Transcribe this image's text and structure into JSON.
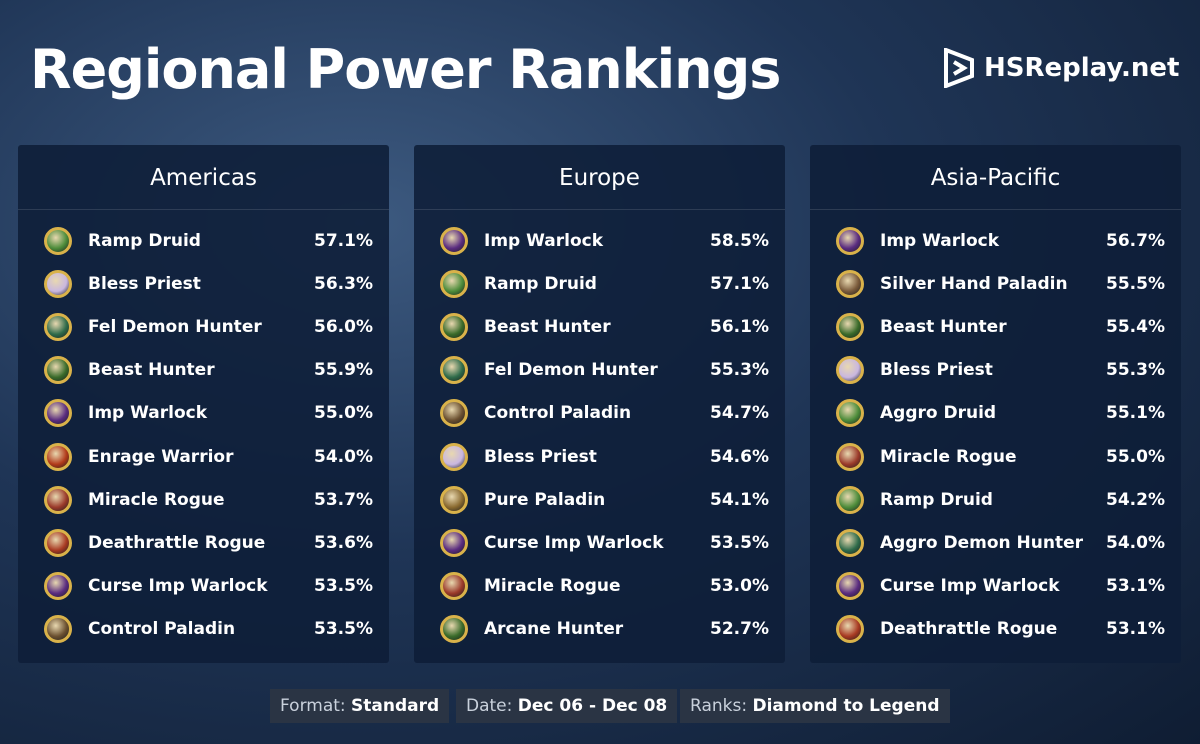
{
  "header": {
    "title": "Regional Power Rankings",
    "logo": "HSReplay.net"
  },
  "panels": [
    {
      "region": "Americas",
      "rows": [
        [
          "Ramp Druid",
          "57.1%"
        ],
        [
          "Bless Priest",
          "56.3%"
        ],
        [
          "Fel Demon Hunter",
          "56.0%"
        ],
        [
          "Beast Hunter",
          "55.9%"
        ],
        [
          "Imp Warlock",
          "55.0%"
        ],
        [
          "Enrage Warrior",
          "54.0%"
        ],
        [
          "Miracle Rogue",
          "53.7%"
        ],
        [
          "Deathrattle Rogue",
          "53.6%"
        ],
        [
          "Curse Imp Warlock",
          "53.5%"
        ],
        [
          "Control Paladin",
          "53.5%"
        ]
      ]
    },
    {
      "region": "Europe",
      "rows": [
        [
          "Imp Warlock",
          "58.5%"
        ],
        [
          "Ramp Druid",
          "57.1%"
        ],
        [
          "Beast Hunter",
          "56.1%"
        ],
        [
          "Fel Demon Hunter",
          "55.3%"
        ],
        [
          "Control Paladin",
          "54.7%"
        ],
        [
          "Bless Priest",
          "54.6%"
        ],
        [
          "Pure Paladin",
          "54.1%"
        ],
        [
          "Curse Imp Warlock",
          "53.5%"
        ],
        [
          "Miracle Rogue",
          "53.0%"
        ],
        [
          "Arcane Hunter",
          "52.7%"
        ]
      ]
    },
    {
      "region": "Asia-Pacific",
      "rows": [
        [
          "Imp Warlock",
          "56.7%"
        ],
        [
          "Silver Hand Paladin",
          "55.5%"
        ],
        [
          "Beast Hunter",
          "55.4%"
        ],
        [
          "Bless Priest",
          "55.3%"
        ],
        [
          "Aggro Druid",
          "55.1%"
        ],
        [
          "Miracle Rogue",
          "55.0%"
        ],
        [
          "Ramp Druid",
          "54.2%"
        ],
        [
          "Aggro Demon Hunter",
          "54.0%"
        ],
        [
          "Curse Imp Warlock",
          "53.1%"
        ],
        [
          "Deathrattle Rogue",
          "53.1%"
        ]
      ]
    }
  ],
  "footer": [
    {
      "label": "Format:",
      "value": "Standard"
    },
    {
      "label": "Date:",
      "value": "Dec 06 - Dec 08"
    },
    {
      "label": "Ranks:",
      "value": "Diamond to Legend"
    }
  ]
}
